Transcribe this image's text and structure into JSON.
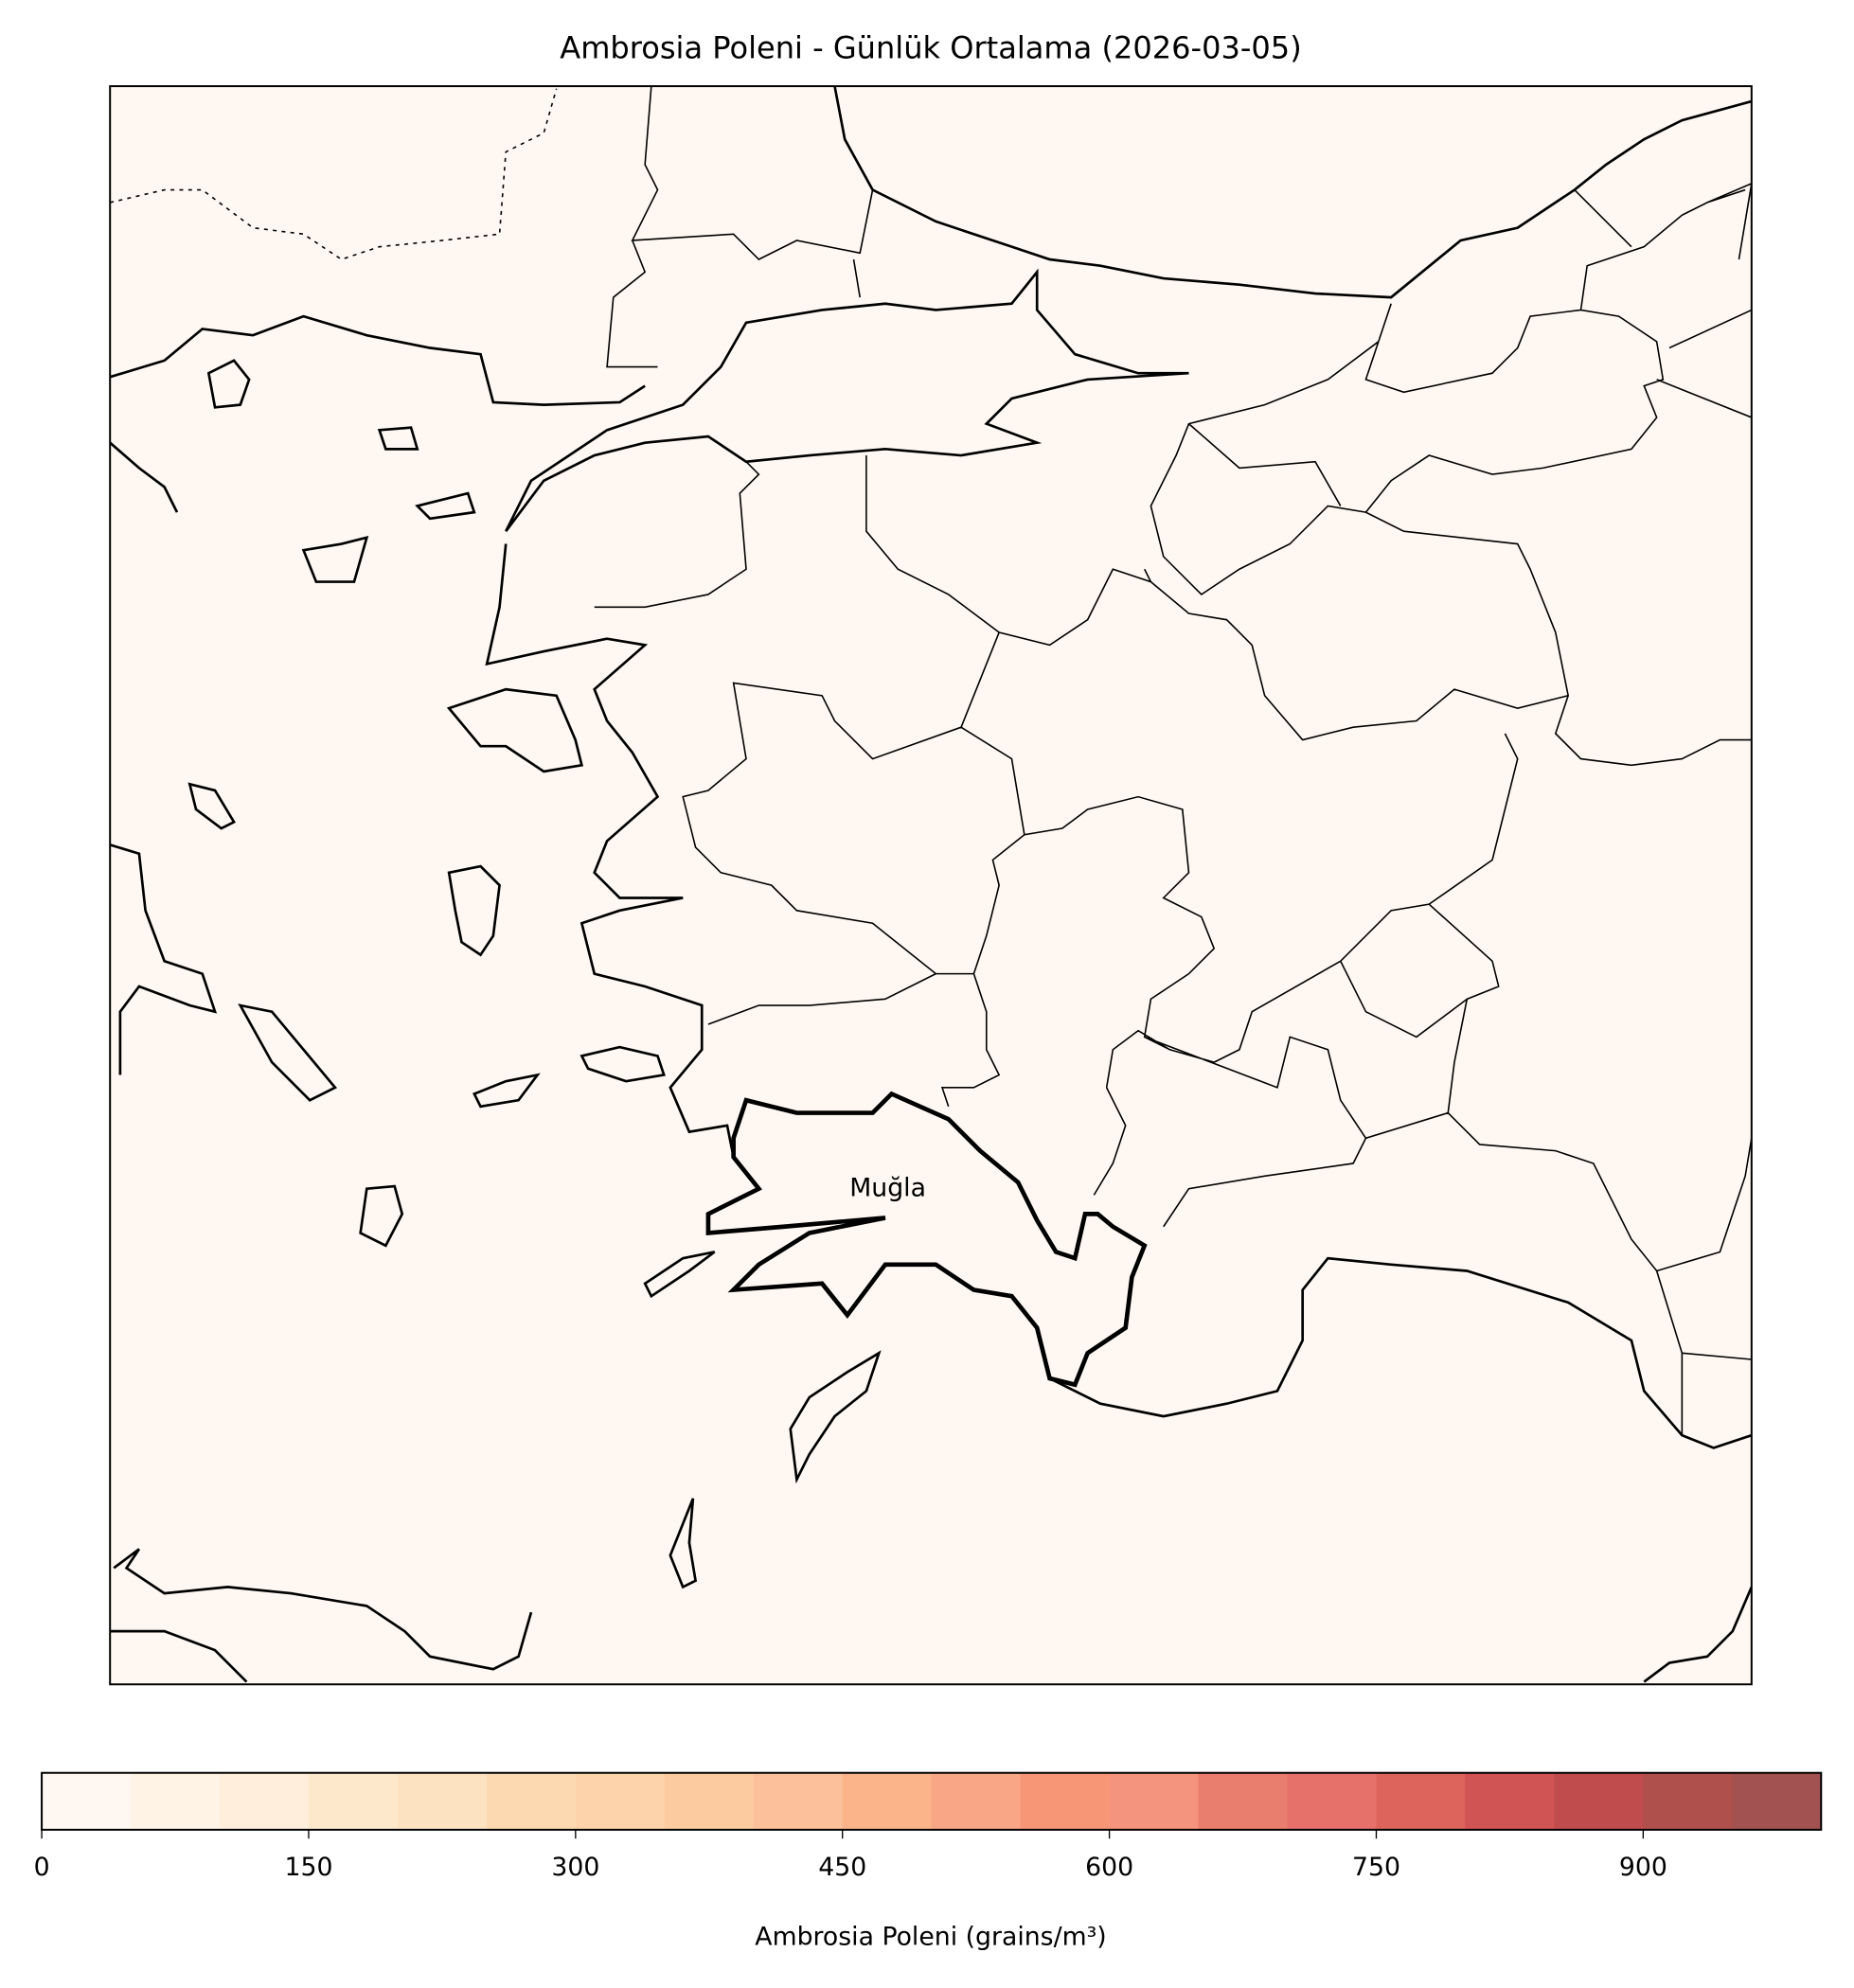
{
  "chart_data": {
    "type": "heatmap",
    "title": "Ambrosia Poleni - Günlük Ortalama (2026-03-05)",
    "map": {
      "highlighted_region": "Muğla",
      "background_value_color": "#fff8f2",
      "values_shown": "all cells in lowest bin (0–50)"
    },
    "colorbar": {
      "label": "Ambrosia Poleni (grains/m³)",
      "range": [
        0,
        1000
      ],
      "bin_size": 50,
      "ticks": [
        0,
        150,
        300,
        450,
        600,
        750,
        900
      ],
      "tick_labels": [
        "0",
        "150",
        "300",
        "450",
        "600",
        "750",
        "900"
      ],
      "colors": [
        "#fff8f2",
        "#fef3e5",
        "#feeedb",
        "#fee8cc",
        "#fde2c2",
        "#fdd9b2",
        "#fdd3ab",
        "#fdcba0",
        "#fcc19a",
        "#fbb38a",
        "#f9a686",
        "#f79677",
        "#f4937e",
        "#ea7e6e",
        "#e6706a",
        "#dc645d",
        "#d05453",
        "#c04c4d",
        "#b0504c",
        "#a25250"
      ],
      "orientation": "horizontal",
      "placement": "bottom"
    }
  }
}
